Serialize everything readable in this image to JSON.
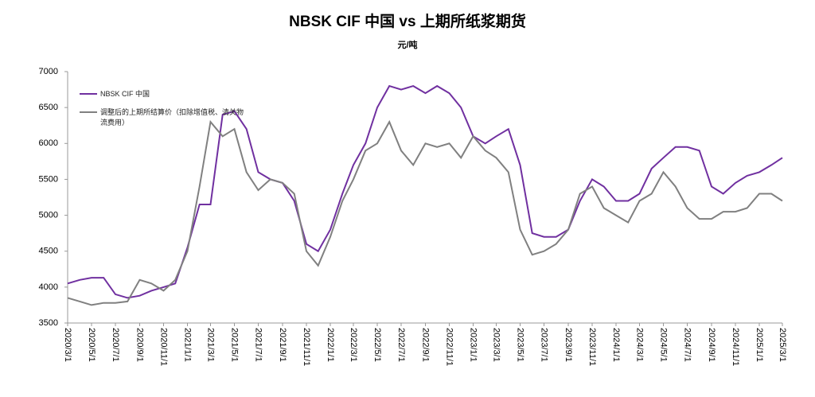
{
  "chart_data": {
    "type": "line",
    "title": "NBSK CIF 中国 vs 上期所纸浆期货",
    "subtitle": "元/吨",
    "x": [
      "2020/3/1",
      "2020/4/1",
      "2020/5/1",
      "2020/6/1",
      "2020/7/1",
      "2020/8/1",
      "2020/9/1",
      "2020/10/1",
      "2020/11/1",
      "2020/12/1",
      "2021/1/1",
      "2021/2/1",
      "2021/3/1",
      "2021/4/1",
      "2021/5/1",
      "2021/6/1",
      "2021/7/1",
      "2021/8/1",
      "2021/9/1",
      "2021/10/1",
      "2021/11/1",
      "2021/12/1",
      "2022/1/1",
      "2022/2/1",
      "2022/3/1",
      "2022/4/1",
      "2022/5/1",
      "2022/6/1",
      "2022/7/1",
      "2022/8/1",
      "2022/9/1",
      "2022/10/1",
      "2022/11/1",
      "2022/12/1",
      "2023/1/1",
      "2023/2/1",
      "2023/3/1",
      "2023/4/1",
      "2023/5/1",
      "2023/6/1",
      "2023/7/1",
      "2023/8/1",
      "2023/9/1",
      "2023/10/1",
      "2023/11/1",
      "2023/12/1",
      "2024/1/1",
      "2024/2/1",
      "2024/3/1",
      "2024/4/1",
      "2024/5/1",
      "2024/6/1",
      "2024/7/1",
      "2024/8/1",
      "2024/9/1",
      "2024/10/1",
      "2024/11/1",
      "2024/12/1",
      "2025/1/1",
      "2025/2/1",
      "2025/3/1"
    ],
    "series": [
      {
        "name": "NBSK CIF 中国",
        "color": "#7030a0",
        "values": [
          4050,
          4100,
          4130,
          4130,
          3900,
          3850,
          3880,
          3950,
          4000,
          4050,
          4550,
          5150,
          5150,
          6400,
          6450,
          6200,
          5600,
          5500,
          5450,
          5200,
          4600,
          4500,
          4800,
          5300,
          5700,
          6000,
          6500,
          6800,
          6750,
          6800,
          6700,
          6800,
          6700,
          6500,
          6100,
          6000,
          6100,
          6200,
          5700,
          4750,
          4700,
          4700,
          4800,
          5200,
          5500,
          5400,
          5200,
          5200,
          5300,
          5650,
          5800,
          5950,
          5950,
          5900,
          5400,
          5300,
          5450,
          5550,
          5600,
          5700,
          5800
        ]
      },
      {
        "name": "调整后的上期所结算价（扣除增值税、清关物流费用）",
        "color": "#808080",
        "values": [
          3850,
          3800,
          3750,
          3780,
          3780,
          3800,
          4100,
          4050,
          3950,
          4100,
          4500,
          5400,
          6300,
          6100,
          6200,
          5600,
          5350,
          5500,
          5450,
          5300,
          4500,
          4300,
          4700,
          5200,
          5500,
          5900,
          6000,
          6300,
          5900,
          5700,
          6000,
          5950,
          6000,
          5800,
          6100,
          5900,
          5800,
          5600,
          4800,
          4450,
          4500,
          4600,
          4800,
          5300,
          5400,
          5100,
          5000,
          4900,
          5200,
          5300,
          5600,
          5400,
          5100,
          4950,
          4950,
          5050,
          5050,
          5100,
          5300,
          5300,
          5200
        ]
      }
    ],
    "xlim": [
      "2020/3/1",
      "2025/3/1"
    ],
    "xticks": [
      "2020/3/1",
      "2020/5/1",
      "2020/7/1",
      "2020/9/1",
      "2020/11/1",
      "2021/1/1",
      "2021/3/1",
      "2021/5/1",
      "2021/7/1",
      "2021/9/1",
      "2021/11/1",
      "2022/1/1",
      "2022/3/1",
      "2022/5/1",
      "2022/7/1",
      "2022/9/1",
      "2022/11/1",
      "2023/1/1",
      "2023/3/1",
      "2023/5/1",
      "2023/7/1",
      "2023/9/1",
      "2023/11/1",
      "2024/1/1",
      "2024/3/1",
      "2024/5/1",
      "2024/7/1",
      "2024/9/1",
      "2024/11/1",
      "2025/1/1",
      "2025/3/1"
    ],
    "ylim": [
      3500,
      7000
    ],
    "yticks": [
      3500,
      4000,
      4500,
      5000,
      5500,
      6000,
      6500,
      7000
    ],
    "grid": false,
    "legend": "upper left"
  }
}
